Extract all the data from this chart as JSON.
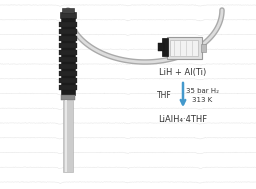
{
  "bg_color": "#ffffff",
  "nmr_line_color": "#cccccc",
  "arrow_color": "#4499cc",
  "text_color": "#333333",
  "reactant_text": "LiH + Al(Ti)",
  "product_text": "LiAlH₄·4THF",
  "solvent_text": "THF",
  "conditions_line1": "35 bar H₂",
  "conditions_line2": "313 K"
}
